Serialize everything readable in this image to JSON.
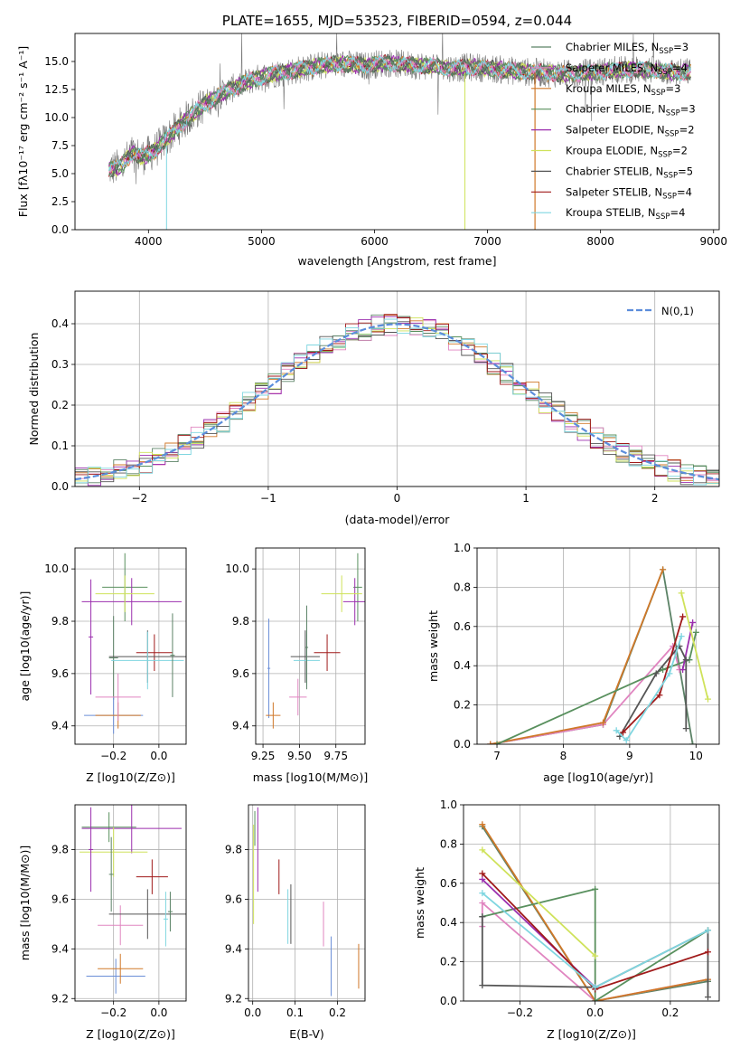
{
  "colors": [
    "#5b8266",
    "#e085c0",
    "#d07829",
    "#59905e",
    "#9b2fae",
    "#cfe25a",
    "#555555",
    "#a01a1a",
    "#7fd6e0",
    "#6b8fd8"
  ],
  "chart_data": [
    {
      "id": "spectrum",
      "type": "line",
      "title": "PLATE=1655, MJD=53523, FIBERID=0594, z=0.044",
      "xlabel": "wavelength [Angstrom, rest frame]",
      "ylabel": "Flux [fλ10⁻¹⁷ erg cm⁻² s⁻¹ A⁻¹]",
      "xlim": [
        3350,
        9050
      ],
      "ylim": [
        0,
        17.5
      ],
      "xticks": [
        "4000",
        "5000",
        "6000",
        "7000",
        "8000",
        "9000"
      ],
      "yticks": [
        "0.0",
        "2.5",
        "5.0",
        "7.5",
        "10.0",
        "12.5",
        "15.0"
      ],
      "xtick_values": [
        4000,
        5000,
        6000,
        7000,
        8000,
        9000
      ],
      "ytick_values": [
        0,
        2.5,
        5,
        7.5,
        10,
        12.5,
        15
      ],
      "grid": false,
      "legend_position": "upper-right",
      "legend": [
        {
          "name": "Chabrier MILES, N",
          "sub": "SSP",
          "suffix": "=3"
        },
        {
          "name": "Salpeter MILES, N",
          "sub": "SSP",
          "suffix": "=4"
        },
        {
          "name": "Kroupa MILES, N",
          "sub": "SSP",
          "suffix": "=3"
        },
        {
          "name": "Chabrier ELODIE, N",
          "sub": "SSP",
          "suffix": "=3"
        },
        {
          "name": "Salpeter ELODIE, N",
          "sub": "SSP",
          "suffix": "=2"
        },
        {
          "name": "Kroupa ELODIE, N",
          "sub": "SSP",
          "suffix": "=2"
        },
        {
          "name": "Chabrier STELIB, N",
          "sub": "SSP",
          "suffix": "=5"
        },
        {
          "name": "Salpeter STELIB, N",
          "sub": "SSP",
          "suffix": "=4"
        },
        {
          "name": "Kroupa STELIB, N",
          "sub": "SSP",
          "suffix": "=4"
        }
      ],
      "continuum": {
        "x": [
          3650,
          3750,
          3850,
          3950,
          4050,
          4150,
          4250,
          4350,
          4500,
          4700,
          4900,
          5100,
          5300,
          5500,
          5700,
          5900,
          6100,
          6300,
          6500,
          6700,
          6900,
          7100,
          7300,
          7500,
          7700,
          7900,
          8100,
          8300,
          8500,
          8700,
          8800
        ],
        "y": [
          5.4,
          5.6,
          6.8,
          6.5,
          7.0,
          8.0,
          9.0,
          10.0,
          11.2,
          12.4,
          13.3,
          13.9,
          14.2,
          14.6,
          14.8,
          14.6,
          14.9,
          14.7,
          14.6,
          14.4,
          14.5,
          14.3,
          14.1,
          14.0,
          13.9,
          14.0,
          14.2,
          14.3,
          14.2,
          14.0,
          14.1
        ]
      }
    },
    {
      "id": "residuals",
      "type": "histogram",
      "xlabel": "(data-model)/error",
      "ylabel": "Normed distribution",
      "xlim": [
        -2.5,
        2.5
      ],
      "ylim": [
        0,
        0.48
      ],
      "xticks": [
        "−2",
        "−1",
        "0",
        "1",
        "2"
      ],
      "yticks": [
        "0.0",
        "0.1",
        "0.2",
        "0.3",
        "0.4"
      ],
      "xtick_values": [
        -2,
        -1,
        0,
        1,
        2
      ],
      "ytick_values": [
        0,
        0.1,
        0.2,
        0.3,
        0.4
      ],
      "grid": true,
      "bin_width": 0.1,
      "reference_label": "N(0,1)",
      "reference_color": "#5b8ddb"
    },
    {
      "id": "age-vs-Z",
      "type": "errorbar",
      "xlabel": "Z [log10(Z/Z⊙)]",
      "ylabel": "age  [log10(age/yr)]",
      "xlim": [
        -0.37,
        0.12
      ],
      "ylim": [
        9.33,
        10.08
      ],
      "xticks": [
        "−0.2",
        "0.0"
      ],
      "yticks": [
        "9.4",
        "9.6",
        "9.8",
        "10.0"
      ],
      "xtick_values": [
        -0.2,
        0.0
      ],
      "ytick_values": [
        9.4,
        9.6,
        9.8,
        10.0
      ],
      "points": [
        {
          "c": 3,
          "x": -0.15,
          "xe": 0.1,
          "y": 9.93,
          "ye": 0.13
        },
        {
          "c": 4,
          "x": -0.12,
          "xe": 0.22,
          "y": 9.875,
          "ye": 0.09
        },
        {
          "c": 5,
          "x": -0.15,
          "xe": 0.13,
          "y": 9.905,
          "ye": 0.07
        },
        {
          "c": 0,
          "x": -0.2,
          "xe": 0.02,
          "y": 9.66,
          "ye": 0.16
        },
        {
          "c": 9,
          "x": -0.2,
          "xe": 0.13,
          "y": 9.44,
          "ye": 0.07
        },
        {
          "c": 2,
          "x": -0.18,
          "xe": 0.1,
          "y": 9.44,
          "ye": 0.05
        },
        {
          "c": 1,
          "x": -0.18,
          "xe": 0.1,
          "y": 9.51,
          "ye": 0.09
        },
        {
          "c": 4,
          "x": -0.3,
          "xe": 0.01,
          "y": 9.74,
          "ye": 0.22
        },
        {
          "c": 7,
          "x": -0.02,
          "xe": 0.08,
          "y": 9.68,
          "ye": 0.07
        },
        {
          "c": 6,
          "x": -0.05,
          "xe": 0.17,
          "y": 9.665,
          "ye": 0.1
        },
        {
          "c": 8,
          "x": -0.05,
          "xe": 0.16,
          "y": 9.65,
          "ye": 0.11
        },
        {
          "c": 0,
          "x": 0.06,
          "xe": 0.01,
          "y": 9.67,
          "ye": 0.16
        }
      ]
    },
    {
      "id": "age-vs-mass",
      "type": "errorbar",
      "xlabel": "mass [log10(M/M⊙)]",
      "ylabel": "",
      "xlim": [
        9.2,
        9.95
      ],
      "ylim": [
        9.33,
        10.08
      ],
      "xticks": [
        "9.25",
        "9.50",
        "9.75"
      ],
      "yticks": [
        "9.4",
        "9.6",
        "9.8",
        "10.0"
      ],
      "xtick_values": [
        9.25,
        9.5,
        9.75
      ],
      "ytick_values": [
        9.4,
        9.6,
        9.8,
        10.0
      ],
      "points": [
        {
          "c": 3,
          "x": 9.9,
          "xe": 0.03,
          "y": 9.93,
          "ye": 0.13
        },
        {
          "c": 4,
          "x": 9.88,
          "xe": 0.08,
          "y": 9.875,
          "ye": 0.09
        },
        {
          "c": 5,
          "x": 9.79,
          "xe": 0.14,
          "y": 9.905,
          "ye": 0.07
        },
        {
          "c": 9,
          "x": 9.29,
          "xe": 0.01,
          "y": 9.62,
          "ye": 0.19
        },
        {
          "c": 2,
          "x": 9.32,
          "xe": 0.05,
          "y": 9.44,
          "ye": 0.05
        },
        {
          "c": 1,
          "x": 9.49,
          "xe": 0.06,
          "y": 9.51,
          "ye": 0.07
        },
        {
          "c": 6,
          "x": 9.54,
          "xe": 0.1,
          "y": 9.665,
          "ye": 0.1
        },
        {
          "c": 8,
          "x": 9.55,
          "xe": 0.09,
          "y": 9.65,
          "ye": 0.1
        },
        {
          "c": 0,
          "x": 9.55,
          "xe": 0.01,
          "y": 9.7,
          "ye": 0.16
        },
        {
          "c": 7,
          "x": 9.69,
          "xe": 0.09,
          "y": 9.68,
          "ye": 0.07
        }
      ]
    },
    {
      "id": "weights-vs-age",
      "type": "line",
      "xlabel": "age  [log10(age/yr)]",
      "ylabel": "mass weight",
      "xlim": [
        6.7,
        10.35
      ],
      "ylim": [
        0,
        1
      ],
      "xticks": [
        "7",
        "8",
        "9",
        "10"
      ],
      "yticks": [
        "0.0",
        "0.2",
        "0.4",
        "0.6",
        "0.8",
        "1.0"
      ],
      "xtick_values": [
        7,
        8,
        9,
        10
      ],
      "ytick_values": [
        0,
        0.2,
        0.4,
        0.6,
        0.8,
        1.0
      ],
      "grid": true,
      "series": [
        {
          "c": 0,
          "x": [
            6.9,
            8.6,
            9.5,
            9.95
          ],
          "y": [
            0.0,
            0.1,
            0.89,
            0.0
          ]
        },
        {
          "c": 1,
          "x": [
            6.9,
            8.6,
            9.65,
            9.75
          ],
          "y": [
            0.0,
            0.1,
            0.5,
            0.38
          ]
        },
        {
          "c": 2,
          "x": [
            6.9,
            8.6,
            9.5
          ],
          "y": [
            0.0,
            0.11,
            0.89
          ]
        },
        {
          "c": 3,
          "x": [
            7.0,
            9.5,
            9.9,
            10.0
          ],
          "y": [
            0.0,
            0.38,
            0.43,
            0.57
          ]
        },
        {
          "c": 4,
          "x": [
            9.8,
            9.95
          ],
          "y": [
            0.38,
            0.62
          ]
        },
        {
          "c": 5,
          "x": [
            9.78,
            10.18
          ],
          "y": [
            0.77,
            0.23
          ]
        },
        {
          "c": 6,
          "x": [
            8.85,
            9.4,
            9.75,
            9.85,
            9.85
          ],
          "y": [
            0.04,
            0.36,
            0.5,
            0.43,
            0.08
          ]
        },
        {
          "c": 7,
          "x": [
            8.9,
            9.45,
            9.8
          ],
          "y": [
            0.06,
            0.25,
            0.65
          ]
        },
        {
          "c": 8,
          "x": [
            8.8,
            8.95,
            9.6,
            9.78
          ],
          "y": [
            0.07,
            0.02,
            0.36,
            0.55
          ]
        }
      ]
    },
    {
      "id": "mass-vs-Z",
      "type": "errorbar",
      "xlabel": "Z [log10(Z/Z⊙)]",
      "ylabel": "mass [log10(M/M⊙)]",
      "xlim": [
        -0.37,
        0.12
      ],
      "ylim": [
        9.19,
        9.98
      ],
      "xticks": [
        "−0.2",
        "0.0"
      ],
      "yticks": [
        "9.2",
        "9.4",
        "9.6",
        "9.8"
      ],
      "xtick_values": [
        -0.2,
        0.0
      ],
      "ytick_values": [
        9.2,
        9.4,
        9.6,
        9.8
      ],
      "points": [
        {
          "c": 3,
          "x": -0.22,
          "xe": 0.12,
          "y": 9.89,
          "ye": 0.06
        },
        {
          "c": 4,
          "x": -0.12,
          "xe": 0.22,
          "y": 9.885,
          "ye": 0.1
        },
        {
          "c": 5,
          "x": -0.2,
          "xe": 0.15,
          "y": 9.79,
          "ye": 0.1
        },
        {
          "c": 0,
          "x": -0.21,
          "xe": 0.01,
          "y": 9.7,
          "ye": 0.15
        },
        {
          "c": 9,
          "x": -0.19,
          "xe": 0.13,
          "y": 9.29,
          "ye": 0.07
        },
        {
          "c": 2,
          "x": -0.17,
          "xe": 0.1,
          "y": 9.32,
          "ye": 0.06
        },
        {
          "c": 1,
          "x": -0.17,
          "xe": 0.1,
          "y": 9.495,
          "ye": 0.08
        },
        {
          "c": 4,
          "x": -0.3,
          "xe": 0.01,
          "y": 9.8,
          "ye": 0.17
        },
        {
          "c": 7,
          "x": -0.03,
          "xe": 0.07,
          "y": 9.69,
          "ye": 0.07
        },
        {
          "c": 6,
          "x": -0.05,
          "xe": 0.17,
          "y": 9.54,
          "ye": 0.1
        },
        {
          "c": 8,
          "x": 0.03,
          "xe": 0.01,
          "y": 9.52,
          "ye": 0.11
        },
        {
          "c": 0,
          "x": 0.05,
          "xe": 0.01,
          "y": 9.55,
          "ye": 0.08
        }
      ]
    },
    {
      "id": "mass-vs-EBV",
      "type": "errorbar",
      "xlabel": "E(B-V)",
      "ylabel": "",
      "xlim": [
        -0.01,
        0.265
      ],
      "ylim": [
        9.19,
        9.98
      ],
      "xticks": [
        "0.0",
        "0.1",
        "0.2"
      ],
      "yticks": [
        "9.2",
        "9.4",
        "9.6",
        "9.8"
      ],
      "xtick_values": [
        0.0,
        0.1,
        0.2
      ],
      "ytick_values": [
        9.2,
        9.4,
        9.6,
        9.8
      ],
      "points": [
        {
          "c": 3,
          "x": 0.005,
          "xe": 0,
          "y": 9.885,
          "ye": 0.07
        },
        {
          "c": 4,
          "x": 0.012,
          "xe": 0,
          "y": 9.8,
          "ye": 0.17
        },
        {
          "c": 5,
          "x": 0.002,
          "xe": 0,
          "y": 9.7,
          "ye": 0.2
        },
        {
          "c": 7,
          "x": 0.062,
          "xe": 0,
          "y": 9.69,
          "ye": 0.07
        },
        {
          "c": 8,
          "x": 0.083,
          "xe": 0,
          "y": 9.53,
          "ye": 0.11
        },
        {
          "c": 6,
          "x": 0.09,
          "xe": 0,
          "y": 9.54,
          "ye": 0.12
        },
        {
          "c": 1,
          "x": 0.167,
          "xe": 0,
          "y": 9.5,
          "ye": 0.09
        },
        {
          "c": 9,
          "x": 0.185,
          "xe": 0,
          "y": 9.33,
          "ye": 0.12
        },
        {
          "c": 2,
          "x": 0.25,
          "xe": 0,
          "y": 9.33,
          "ye": 0.09
        }
      ]
    },
    {
      "id": "weights-vs-Z",
      "type": "line",
      "xlabel": "Z [log10(Z/Z⊙)]",
      "ylabel": "mass weight",
      "xlim": [
        -0.35,
        0.33
      ],
      "ylim": [
        0,
        1
      ],
      "xticks": [
        "−0.2",
        "0.0",
        "0.2"
      ],
      "yticks": [
        "0.0",
        "0.2",
        "0.4",
        "0.6",
        "0.8",
        "1.0"
      ],
      "xtick_values": [
        -0.2,
        0.0,
        0.2
      ],
      "ytick_values": [
        0,
        0.2,
        0.4,
        0.6,
        0.8,
        1.0
      ],
      "grid": true,
      "series": [
        {
          "c": 0,
          "x": [
            -0.3,
            0.0,
            0.3
          ],
          "y": [
            0.89,
            0.0,
            0.1
          ]
        },
        {
          "c": 1,
          "x": [
            -0.3,
            -0.3,
            0.0,
            0.3
          ],
          "y": [
            0.38,
            0.5,
            0.0,
            0.11
          ]
        },
        {
          "c": 2,
          "x": [
            -0.3,
            0.0,
            0.3
          ],
          "y": [
            0.9,
            0.0,
            0.11
          ]
        },
        {
          "c": 3,
          "x": [
            -0.3,
            0.0,
            0.0,
            0.3
          ],
          "y": [
            0.43,
            0.57,
            0.0,
            0.36
          ]
        },
        {
          "c": 4,
          "x": [
            -0.3,
            0.0
          ],
          "y": [
            0.62,
            0.07
          ]
        },
        {
          "c": 5,
          "x": [
            -0.3,
            0.0
          ],
          "y": [
            0.77,
            0.23
          ]
        },
        {
          "c": 6,
          "x": [
            -0.3,
            -0.3,
            0.0,
            0.3,
            0.3
          ],
          "y": [
            0.43,
            0.08,
            0.07,
            0.36,
            0.02
          ]
        },
        {
          "c": 7,
          "x": [
            -0.3,
            0.0,
            0.3
          ],
          "y": [
            0.65,
            0.06,
            0.25
          ]
        },
        {
          "c": 8,
          "x": [
            -0.3,
            0.0,
            0.3
          ],
          "y": [
            0.55,
            0.07,
            0.36
          ]
        }
      ]
    }
  ]
}
